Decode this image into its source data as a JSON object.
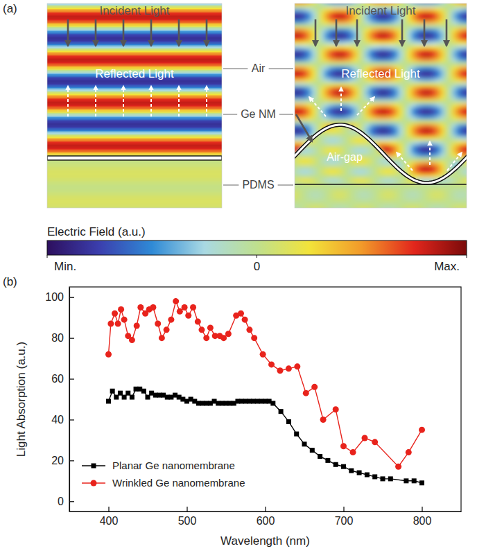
{
  "panel_a": {
    "label": "(a)",
    "left": {
      "incident": "Incident Light",
      "reflected": "Reflected Light"
    },
    "right": {
      "incident": "Incident Light",
      "reflected": "Reflected Light",
      "air_gap": "Air-gap"
    },
    "center_labels": [
      "Air",
      "Ge NM",
      "PDMS"
    ],
    "colorbar": {
      "title": "Electric Field (a.u.)",
      "range": [
        -1,
        1
      ],
      "ticks": [
        {
          "value": -1,
          "label": "Min."
        },
        0,
        {
          "value": 1,
          "label": "Max."
        }
      ]
    }
  },
  "chart_data": {
    "type": "line",
    "annotations": [
      "(b)"
    ],
    "x_label": "Wavelength (nm)",
    "y_label": "Light Absorption (a.u.)",
    "xlim": [
      350,
      850
    ],
    "xticks": [
      400,
      500,
      600,
      700,
      800
    ],
    "ylim": [
      -5,
      105
    ],
    "yticks": [
      0,
      20,
      40,
      60,
      80,
      100
    ],
    "grid": false,
    "legend": "lower left",
    "series": [
      {
        "name": "Planar Ge nanomembrane",
        "color": "#000000",
        "marker": "square",
        "line_style": "solid",
        "x": [
          400,
          405,
          410,
          415,
          420,
          425,
          430,
          435,
          440,
          445,
          450,
          455,
          460,
          465,
          470,
          475,
          480,
          485,
          490,
          495,
          500,
          505,
          510,
          515,
          520,
          525,
          530,
          535,
          540,
          545,
          550,
          555,
          560,
          565,
          570,
          575,
          580,
          585,
          590,
          595,
          600,
          605,
          610,
          620,
          630,
          640,
          650,
          660,
          670,
          680,
          690,
          700,
          710,
          720,
          730,
          740,
          750,
          760,
          780,
          790,
          800
        ],
        "values": [
          49,
          54,
          51,
          53,
          51,
          53,
          51,
          55,
          55,
          54,
          51,
          53,
          52,
          52,
          52,
          51,
          51,
          52,
          51,
          50,
          49,
          50,
          49,
          48,
          48,
          48,
          48,
          49,
          48,
          48,
          48,
          48,
          48,
          49,
          49,
          49,
          49,
          49,
          49,
          49,
          49,
          49,
          48,
          44,
          39,
          33,
          28,
          25,
          22,
          20,
          18,
          17,
          15,
          14,
          13,
          12,
          11,
          11,
          10,
          10,
          9
        ]
      },
      {
        "name": "Wrinkled Ge nanomembrane",
        "color": "#e8231c",
        "marker": "circle",
        "line_style": "solid",
        "x": [
          400,
          403,
          408,
          412,
          416,
          420,
          425,
          430,
          436,
          441,
          447,
          452,
          457,
          463,
          468,
          474,
          480,
          486,
          491,
          497,
          502,
          508,
          514,
          519,
          525,
          530,
          536,
          542,
          547,
          553,
          563,
          569,
          574,
          580,
          586,
          597,
          608,
          619,
          630,
          641,
          652,
          663,
          674,
          690,
          700,
          712,
          727,
          740,
          770,
          783,
          800
        ],
        "values": [
          72,
          87,
          92,
          87,
          94,
          89,
          81,
          79,
          86,
          95,
          92,
          94,
          95,
          87,
          80,
          84,
          89,
          98,
          93,
          95,
          91,
          95,
          88,
          84,
          80,
          85,
          81,
          81,
          80,
          82,
          91,
          92,
          89,
          84,
          80,
          72,
          67,
          64,
          65,
          66,
          53,
          56,
          40,
          45,
          27,
          24,
          31,
          29,
          17,
          24,
          35
        ]
      }
    ]
  }
}
